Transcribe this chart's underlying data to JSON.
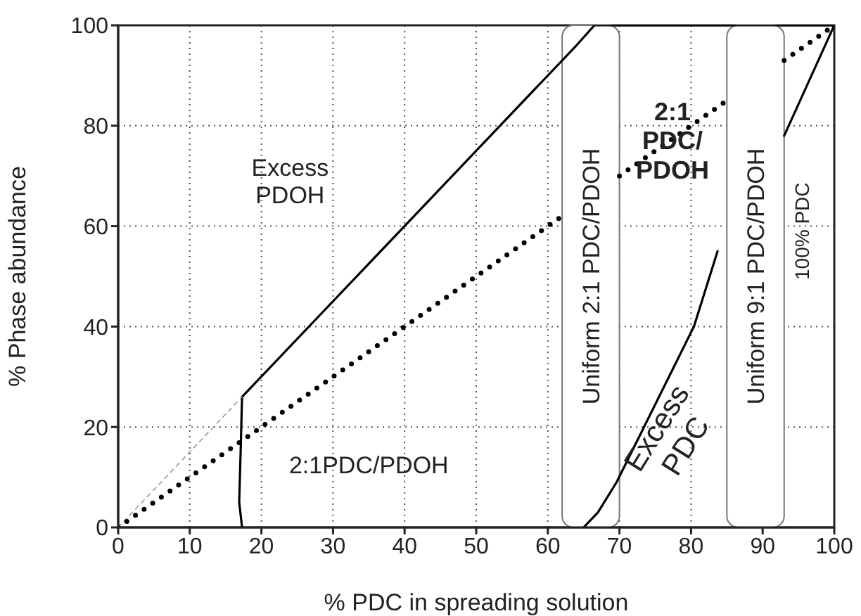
{
  "chart_data": {
    "type": "line",
    "xlabel": "% PDC in spreading solution",
    "ylabel": "% Phase abundance",
    "xlim": [
      0,
      100
    ],
    "ylim": [
      0,
      100
    ],
    "xticks": [
      0,
      10,
      20,
      30,
      40,
      50,
      60,
      70,
      80,
      90,
      100
    ],
    "yticks": [
      0,
      20,
      40,
      60,
      80,
      100
    ],
    "grid": true,
    "marker": "none",
    "series": [
      {
        "color": "#000000",
        "line_style": "solid",
        "x": [
          17.3,
          62,
          64,
          66.5,
          85,
          100
        ],
        "values": [
          26,
          93,
          96,
          100,
          100,
          100
        ]
      },
      {
        "color": "#000000",
        "line_style": "solid",
        "x": [
          17.3,
          17.1,
          16.9,
          17.3
        ],
        "values": [
          26,
          15,
          5,
          0
        ]
      },
      {
        "color": "#999999",
        "line_style": "dashed",
        "x": [
          0,
          17.3
        ],
        "values": [
          0,
          26
        ]
      },
      {
        "color": "#000000",
        "line_style": "solid",
        "x": [
          65,
          67,
          69.6,
          80.4,
          83.7
        ],
        "values": [
          0,
          3,
          9,
          40,
          55
        ]
      },
      {
        "color": "#000000",
        "line_style": "solid",
        "x": [
          93,
          100
        ],
        "values": [
          78,
          100
        ]
      },
      {
        "color": "#000000",
        "line_style": "dotted",
        "x": [
          0,
          62,
          66,
          70,
          84.5,
          89,
          93,
          100
        ],
        "values": [
          0,
          62,
          null,
          70,
          84.5,
          null,
          93,
          100
        ]
      }
    ],
    "bands": [
      {
        "axis": "x",
        "from": 62,
        "to": 70,
        "label": "Uniform 2:1 PDC/PDOH",
        "color": "#777777"
      },
      {
        "axis": "x",
        "from": 85,
        "to": 93,
        "label": "Uniform 9:1 PDC/PDOH",
        "color": "#777777"
      }
    ],
    "annotations": [
      "Excess\nPDOH",
      "2:1PDC/PDOH",
      "2:1\nPDC/\nPDOH",
      "Excess\nPDC",
      "100% PDC"
    ]
  }
}
